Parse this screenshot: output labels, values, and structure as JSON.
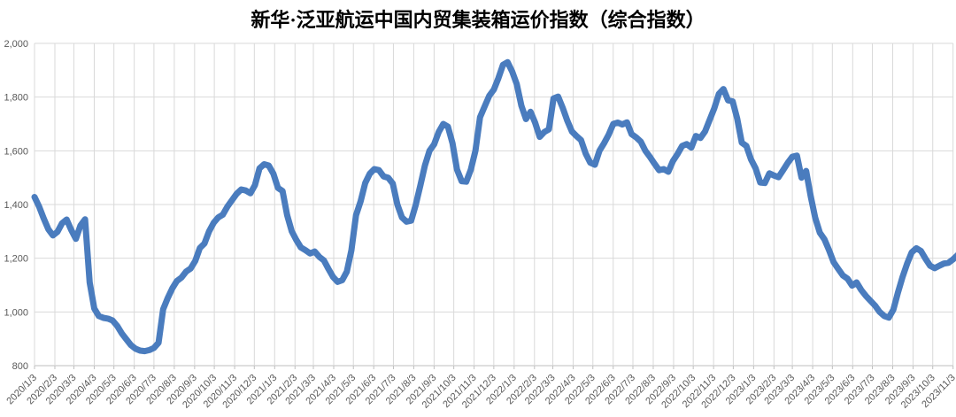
{
  "chart_data": {
    "type": "line",
    "title": "新华·泛亚航运中国内贸集装箱运价指数（综合指数）",
    "legend": "none",
    "grid": "both",
    "ylim": [
      800,
      2000
    ],
    "y_step": 200,
    "y_tick_values": [
      800,
      1000,
      1200,
      1400,
      1600,
      1800,
      2000
    ],
    "y_tick_labels": [
      "800",
      "1,000",
      "1,200",
      "1,400",
      "1,600",
      "1,800",
      "2,000"
    ],
    "x_tick_labels": [
      "2020/1/3",
      "2020/2/3",
      "2020/3/3",
      "2020/4/3",
      "2020/5/3",
      "2020/6/3",
      "2020/7/3",
      "2020/8/3",
      "2020/9/3",
      "2020/10/3",
      "2020/11/3",
      "2020/12/3",
      "2021/1/3",
      "2021/2/3",
      "2021/3/3",
      "2021/4/3",
      "2021/5/3",
      "2021/6/3",
      "2021/7/3",
      "2021/8/3",
      "2021/9/3",
      "2021/10/3",
      "2021/11/3",
      "2021/12/3",
      "2022/1/3",
      "2022/2/3",
      "2022/3/3",
      "2022/4/3",
      "2022/5/3",
      "2022/6/3",
      "2022/7/3",
      "2022/8/3",
      "2022/9/3",
      "2022/10/3",
      "2022/11/3",
      "2022/12/3",
      "2023/1/3",
      "2023/2/3",
      "2023/3/3",
      "2023/4/3",
      "2023/5/3",
      "2023/6/3",
      "2023/7/3",
      "2023/8/3",
      "2023/9/3",
      "2023/10/3",
      "2023/11/3"
    ],
    "series": [
      {
        "name": "综合指数",
        "color": "#4a7cbe",
        "line_width": 7,
        "sampling": "weekly",
        "start_date": "2020/1/3",
        "step_days": 7,
        "values": [
          1428,
          1392,
          1348,
          1308,
          1285,
          1298,
          1330,
          1344,
          1305,
          1272,
          1322,
          1345,
          1110,
          1013,
          985,
          978,
          975,
          968,
          948,
          920,
          898,
          876,
          863,
          856,
          854,
          858,
          866,
          885,
          1010,
          1052,
          1088,
          1115,
          1128,
          1150,
          1162,
          1190,
          1238,
          1255,
          1300,
          1332,
          1352,
          1362,
          1392,
          1416,
          1440,
          1456,
          1452,
          1442,
          1472,
          1535,
          1550,
          1545,
          1515,
          1462,
          1450,
          1360,
          1300,
          1268,
          1240,
          1230,
          1218,
          1225,
          1205,
          1192,
          1160,
          1130,
          1112,
          1118,
          1150,
          1230,
          1360,
          1412,
          1480,
          1515,
          1532,
          1528,
          1505,
          1500,
          1478,
          1400,
          1352,
          1336,
          1340,
          1398,
          1470,
          1545,
          1600,
          1624,
          1670,
          1700,
          1690,
          1628,
          1530,
          1487,
          1485,
          1530,
          1600,
          1725,
          1765,
          1805,
          1828,
          1870,
          1920,
          1930,
          1895,
          1848,
          1768,
          1718,
          1745,
          1705,
          1652,
          1670,
          1680,
          1795,
          1802,
          1760,
          1712,
          1672,
          1655,
          1640,
          1590,
          1556,
          1548,
          1600,
          1628,
          1660,
          1700,
          1705,
          1698,
          1706,
          1662,
          1650,
          1634,
          1600,
          1577,
          1552,
          1528,
          1532,
          1522,
          1562,
          1588,
          1618,
          1625,
          1612,
          1655,
          1648,
          1672,
          1715,
          1758,
          1812,
          1830,
          1788,
          1784,
          1720,
          1630,
          1618,
          1568,
          1535,
          1482,
          1480,
          1516,
          1508,
          1502,
          1528,
          1555,
          1578,
          1582,
          1500,
          1525,
          1430,
          1350,
          1295,
          1270,
          1230,
          1185,
          1160,
          1136,
          1124,
          1098,
          1110,
          1082,
          1060,
          1042,
          1024,
          1000,
          985,
          979,
          1008,
          1072,
          1130,
          1180,
          1222,
          1237,
          1227,
          1198,
          1172,
          1163,
          1172,
          1180,
          1183,
          1196,
          1212
        ]
      }
    ],
    "colors": {
      "gridline": "#d9d9d9",
      "axis_line": "#bfbfbf",
      "tick_label": "#595959",
      "title": "#000000",
      "background": "#ffffff"
    }
  }
}
